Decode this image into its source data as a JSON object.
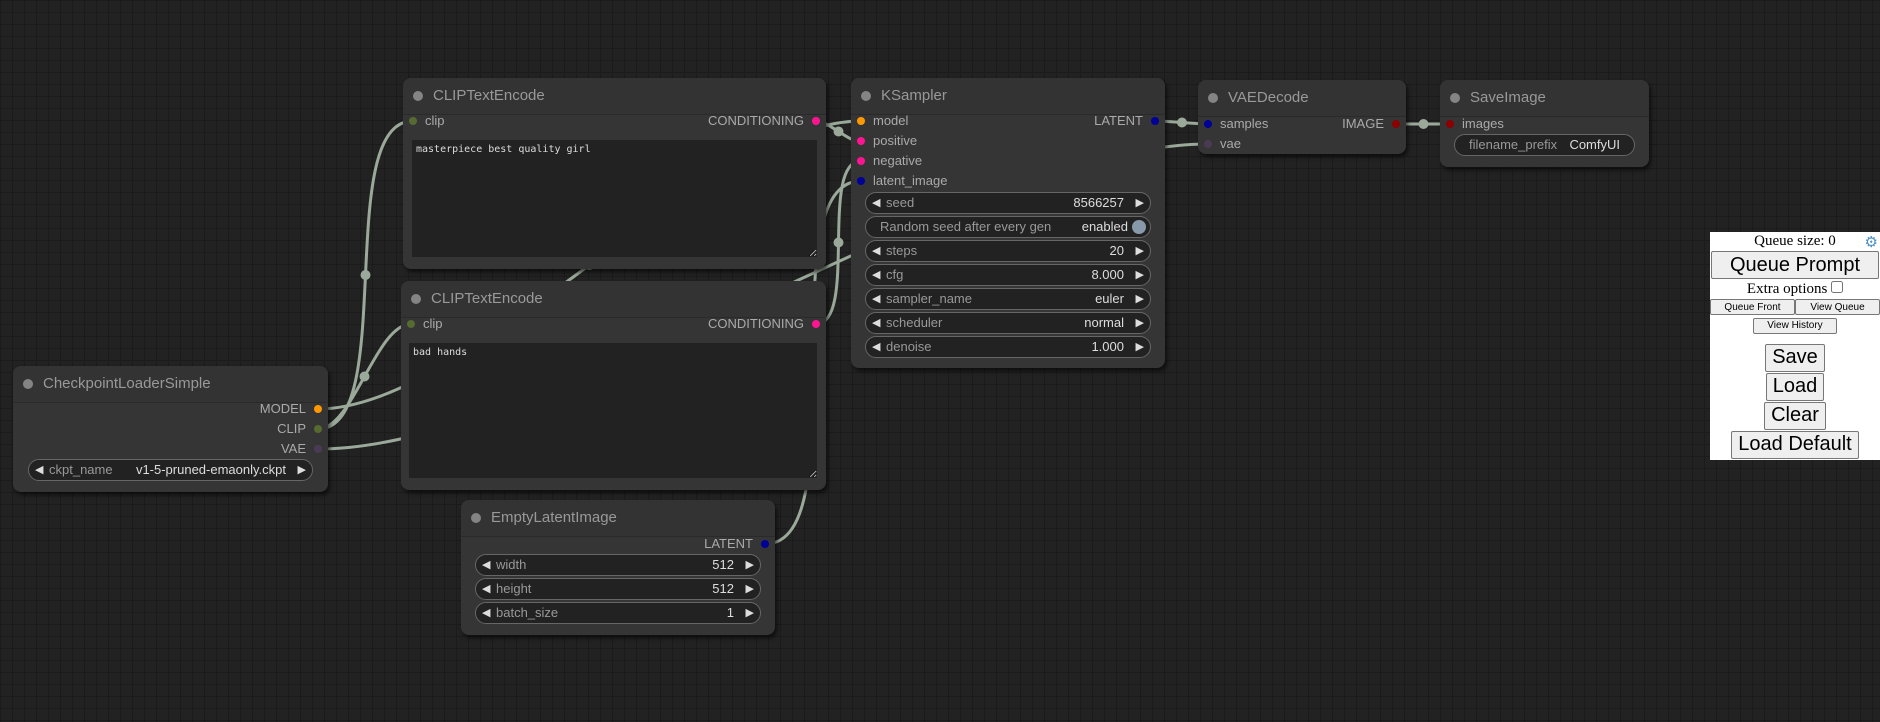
{
  "nodes": {
    "clip1": {
      "title": "CLIPTextEncode",
      "input": "clip",
      "output": "CONDITIONING",
      "text": "masterpiece best quality girl"
    },
    "clip2": {
      "title": "CLIPTextEncode",
      "input": "clip",
      "output": "CONDITIONING",
      "text": "bad hands"
    },
    "checkpoint": {
      "title": "CheckpointLoaderSimple",
      "outputs": [
        "MODEL",
        "CLIP",
        "VAE"
      ],
      "widget": {
        "label": "ckpt_name",
        "value": "v1-5-pruned-emaonly.ckpt"
      }
    },
    "latent": {
      "title": "EmptyLatentImage",
      "output": "LATENT",
      "widgets": [
        {
          "label": "width",
          "value": "512"
        },
        {
          "label": "height",
          "value": "512"
        },
        {
          "label": "batch_size",
          "value": "1"
        }
      ]
    },
    "ksampler": {
      "title": "KSampler",
      "inputs": [
        "model",
        "positive",
        "negative",
        "latent_image"
      ],
      "output": "LATENT",
      "seed": {
        "label": "seed",
        "value": "8566257"
      },
      "toggle": {
        "label": "Random seed after every gen",
        "value": "enabled"
      },
      "widgets": [
        {
          "label": "steps",
          "value": "20"
        },
        {
          "label": "cfg",
          "value": "8.000"
        },
        {
          "label": "sampler_name",
          "value": "euler"
        },
        {
          "label": "scheduler",
          "value": "normal"
        },
        {
          "label": "denoise",
          "value": "1.000"
        }
      ]
    },
    "vaedecode": {
      "title": "VAEDecode",
      "inputs": [
        "samples",
        "vae"
      ],
      "output": "IMAGE"
    },
    "saveimage": {
      "title": "SaveImage",
      "input": "images",
      "widget": {
        "label": "filename_prefix",
        "value": "ComfyUI"
      }
    }
  },
  "slot_colors": {
    "MODEL": "#ff9900",
    "CLIP": "#556b2f",
    "VAE": "#4b3a55",
    "CONDITIONING": "#ff1493",
    "LATENT": "#000099",
    "IMAGE": "#8b0000"
  },
  "link_color": "#9aa99a",
  "panel": {
    "queue_size": "Queue size: 0",
    "queue_prompt": "Queue Prompt",
    "extra_options": "Extra options",
    "queue_front": "Queue Front",
    "view_queue": "View Queue",
    "view_history": "View History",
    "save": "Save",
    "load": "Load",
    "clear": "Clear",
    "load_default": "Load Default",
    "settings_icon": "gear-icon"
  }
}
